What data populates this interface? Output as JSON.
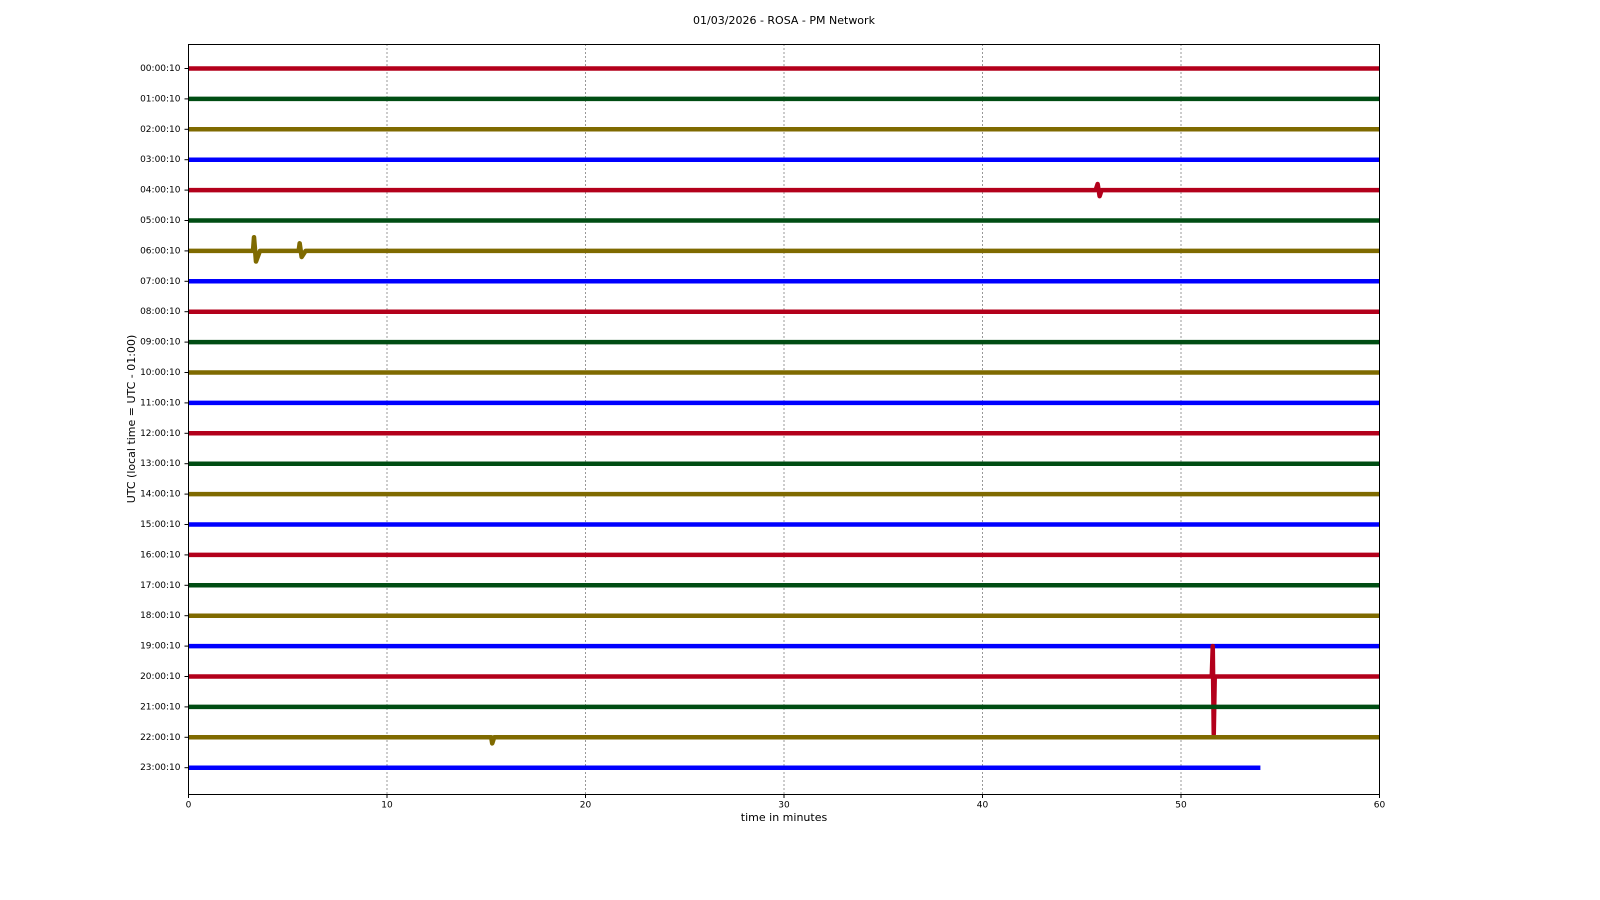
{
  "chart_data": {
    "type": "helicorder",
    "title": "01/03/2026 - ROSA - PM Network",
    "x_label": "time in minutes",
    "y_label": "UTC (local time = UTC - 01:00)",
    "xlim": [
      0,
      60
    ],
    "xticks": [
      0,
      10,
      20,
      30,
      40,
      50,
      60
    ],
    "grid": true,
    "categories": [
      "00:00:10",
      "01:00:10",
      "02:00:10",
      "03:00:10",
      "04:00:10",
      "05:00:10",
      "06:00:10",
      "07:00:10",
      "08:00:10",
      "09:00:10",
      "10:00:10",
      "11:00:10",
      "12:00:10",
      "13:00:10",
      "14:00:10",
      "15:00:10",
      "16:00:10",
      "17:00:10",
      "18:00:10",
      "19:00:10",
      "20:00:10",
      "21:00:10",
      "22:00:10",
      "23:00:10"
    ],
    "series": [
      {
        "color": "#b3001b",
        "x": [
          0,
          60
        ],
        "values": [
          0,
          0
        ]
      },
      {
        "color": "#004d13",
        "x": [
          0,
          60
        ],
        "values": [
          0,
          0
        ]
      },
      {
        "color": "#7f6a00",
        "x": [
          0,
          60
        ],
        "values": [
          0,
          0
        ]
      },
      {
        "color": "#0000ff",
        "x": [
          0,
          60
        ],
        "values": [
          0,
          0
        ]
      },
      {
        "color": "#b3001b",
        "x": [
          0,
          45.7,
          45.8,
          45.9,
          46,
          60
        ],
        "values": [
          0,
          0,
          0.2,
          -0.2,
          0,
          0
        ]
      },
      {
        "color": "#004d13",
        "x": [
          0,
          60
        ],
        "values": [
          0,
          0
        ]
      },
      {
        "color": "#7f6a00",
        "x": [
          0,
          3.25,
          3.3,
          3.4,
          3.6,
          5.55,
          5.6,
          5.7,
          5.9,
          60
        ],
        "values": [
          0,
          0,
          0.45,
          -0.35,
          0,
          0,
          0.25,
          -0.2,
          0,
          0
        ]
      },
      {
        "color": "#0000ff",
        "x": [
          0,
          60
        ],
        "values": [
          0,
          0
        ]
      },
      {
        "color": "#b3001b",
        "x": [
          0,
          60
        ],
        "values": [
          0,
          0
        ]
      },
      {
        "color": "#004d13",
        "x": [
          0,
          60
        ],
        "values": [
          0,
          0
        ]
      },
      {
        "color": "#7f6a00",
        "x": [
          0,
          60
        ],
        "values": [
          0,
          0
        ]
      },
      {
        "color": "#0000ff",
        "x": [
          0,
          60
        ],
        "values": [
          0,
          0
        ]
      },
      {
        "color": "#b3001b",
        "x": [
          0,
          60
        ],
        "values": [
          0,
          0
        ]
      },
      {
        "color": "#004d13",
        "x": [
          0,
          60
        ],
        "values": [
          0,
          0
        ]
      },
      {
        "color": "#7f6a00",
        "x": [
          0,
          60
        ],
        "values": [
          0,
          0
        ]
      },
      {
        "color": "#0000ff",
        "x": [
          0,
          60
        ],
        "values": [
          0,
          0
        ]
      },
      {
        "color": "#b3001b",
        "x": [
          0,
          60
        ],
        "values": [
          0,
          0
        ]
      },
      {
        "color": "#004d13",
        "x": [
          0,
          60
        ],
        "values": [
          0,
          0
        ]
      },
      {
        "color": "#7f6a00",
        "x": [
          0,
          60
        ],
        "values": [
          0,
          0
        ]
      },
      {
        "color": "#0000ff",
        "x": [
          0,
          60
        ],
        "values": [
          0,
          0
        ]
      },
      {
        "color": "#b3001b",
        "x": [
          0,
          51.55,
          51.6,
          51.65,
          51.7,
          60
        ],
        "values": [
          0,
          0,
          1.0,
          -1.9,
          0,
          0
        ]
      },
      {
        "color": "#004d13",
        "x": [
          0,
          60
        ],
        "values": [
          0,
          0
        ]
      },
      {
        "color": "#7f6a00",
        "x": [
          0,
          15.25,
          15.3,
          15.4,
          60
        ],
        "values": [
          0,
          0,
          -0.2,
          0,
          0
        ]
      },
      {
        "color": "#0000ff",
        "x": [
          0,
          54
        ],
        "values": [
          0,
          0
        ]
      }
    ]
  }
}
